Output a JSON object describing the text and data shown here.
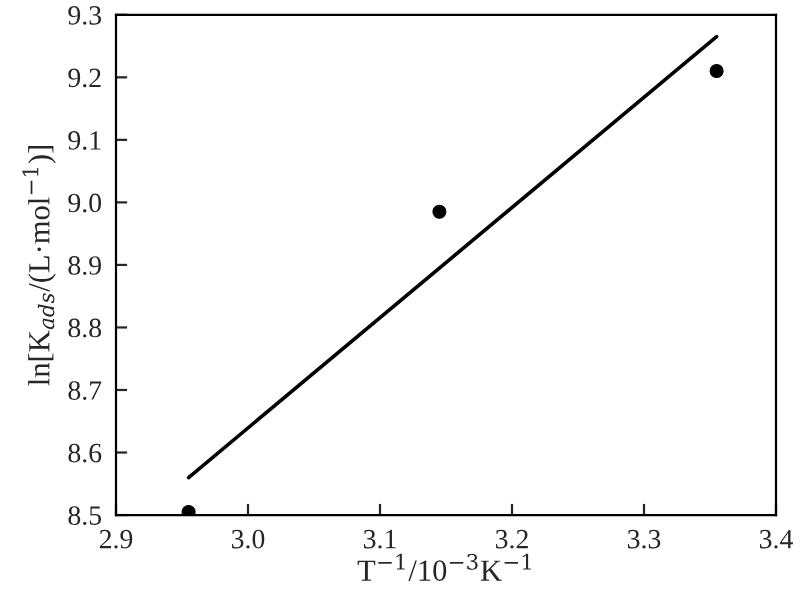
{
  "chart_data": {
    "type": "scatter",
    "xlabel": "T$^{−1}$/10$^{−3}$K$^{−1}$",
    "ylabel": "ln[K$_{ads}$/(L·mol$^{−1}$)]",
    "series": [
      {
        "color": "#000000",
        "marker": "circle",
        "x": [
          2.955,
          3.145,
          3.355
        ],
        "values": [
          8.505,
          8.985,
          9.21
        ]
      },
      {
        "type": "line",
        "color": "#000000",
        "marker": "none",
        "line_style": "solid",
        "x": [
          2.955,
          3.355
        ],
        "values": [
          8.56,
          9.265
        ]
      }
    ],
    "xlim": [
      2.9,
      3.4
    ],
    "xticks": [
      2.9,
      {
        "value": 3.0,
        "label": "3.0"
      },
      3.1,
      3.2,
      3.3,
      3.4
    ],
    "ylim": [
      8.5,
      9.3
    ],
    "yticks": [
      8.5,
      8.6,
      8.7,
      8.8,
      8.9,
      {
        "value": 9.0,
        "label": "9.0"
      },
      9.1,
      9.2,
      9.3
    ],
    "grid": false,
    "legend": false
  }
}
